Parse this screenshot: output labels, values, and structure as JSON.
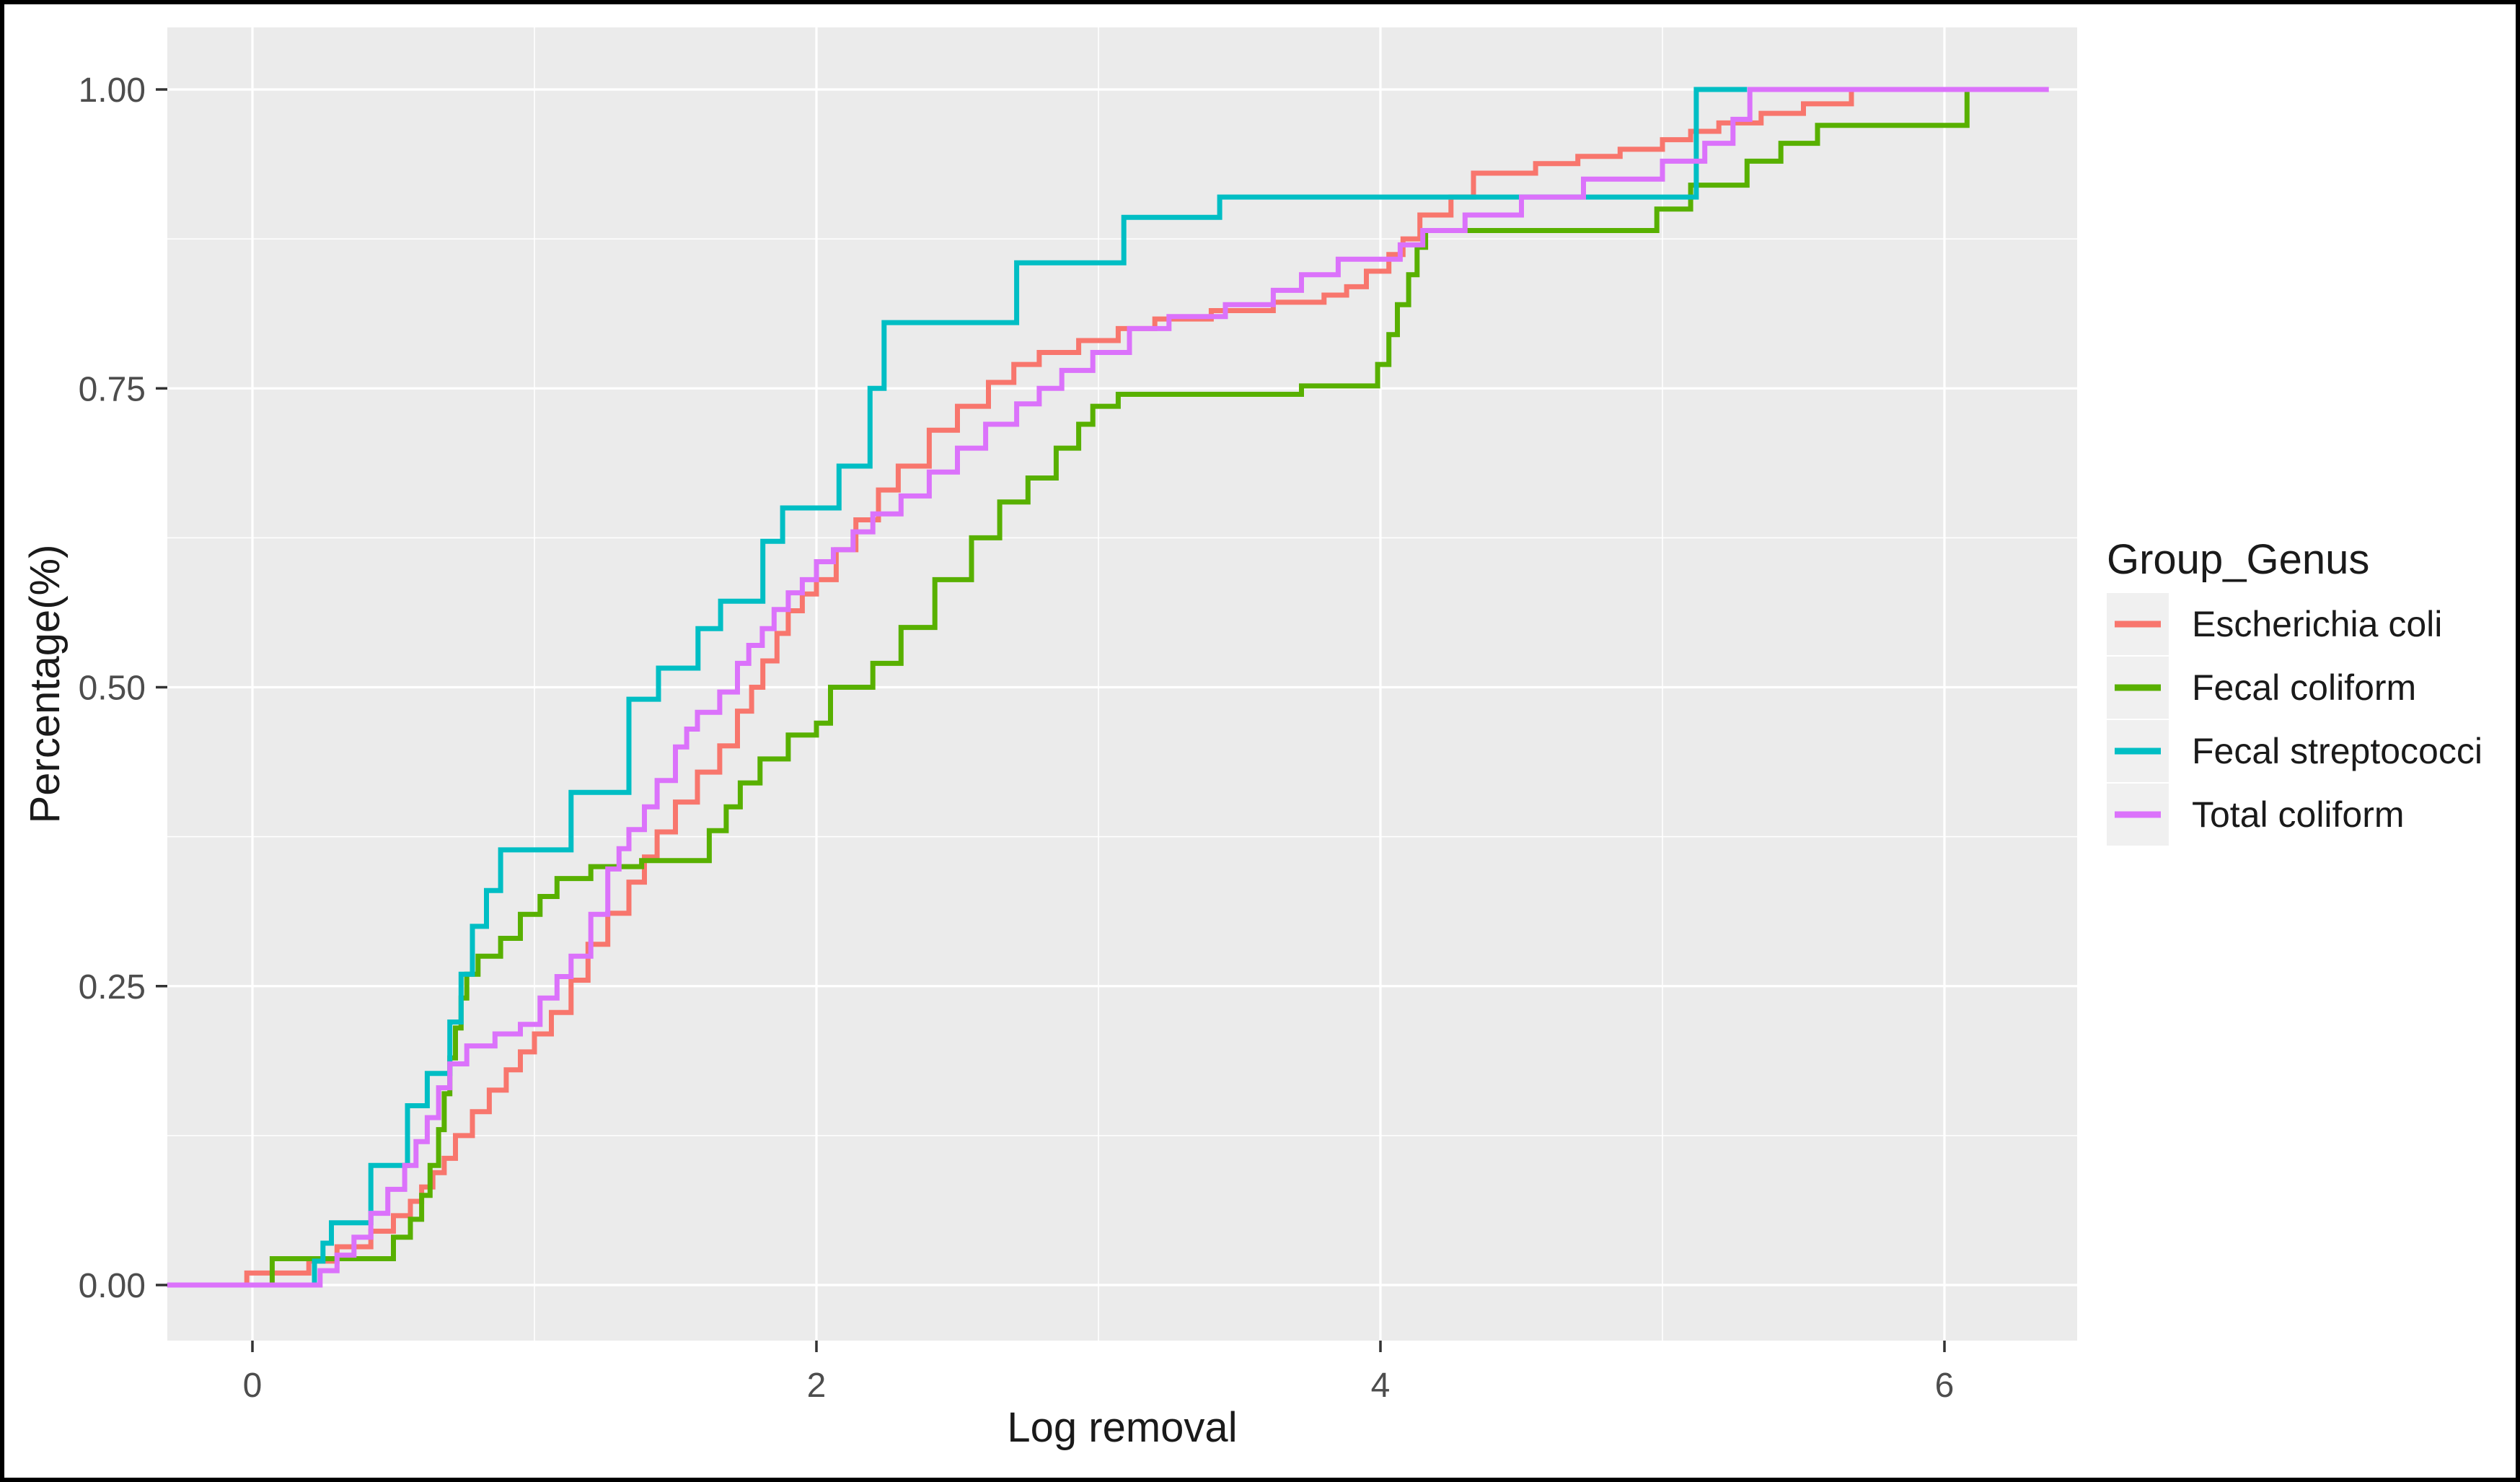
{
  "chart_data": {
    "type": "line",
    "subtype": "step-ecdf",
    "title": "",
    "xlabel": "Log removal",
    "ylabel": "Percentage(%)",
    "legend_title": "Group_Genus",
    "legend_position": "right",
    "grid": "on",
    "panel_bg": "#EBEBEB",
    "grid_major_color": "#FFFFFF",
    "grid_minor_color": "#FFFFFF",
    "legend_key_bg": "#F0F0F0",
    "tick_label_color": "#4D4D4D",
    "axis_title_color": "#1A1A1A",
    "tick_mark_color": "#333333",
    "xlim": [
      -0.302,
      6.47
    ],
    "ylim": [
      -0.046,
      1.052
    ],
    "x_ticks": [
      0,
      2,
      4,
      6
    ],
    "x_tick_labels": [
      "0",
      "2",
      "4",
      "6"
    ],
    "x_minor_ticks": [
      1,
      3,
      5
    ],
    "y_ticks": [
      0,
      0.25,
      0.5,
      0.75,
      1.0
    ],
    "y_tick_labels": [
      "0.00",
      "0.25",
      "0.50",
      "0.75",
      "1.00"
    ],
    "y_minor_ticks": [
      0.125,
      0.375,
      0.625,
      0.875
    ],
    "series": [
      {
        "name": "Escherichia coli",
        "color": "#F8766D",
        "start_x": -0.302,
        "end_x": 5.68,
        "points": [
          [
            -0.02,
            0.01
          ],
          [
            0.2,
            0.02
          ],
          [
            0.3,
            0.032
          ],
          [
            0.42,
            0.045
          ],
          [
            0.5,
            0.058
          ],
          [
            0.56,
            0.07
          ],
          [
            0.6,
            0.082
          ],
          [
            0.64,
            0.094
          ],
          [
            0.68,
            0.106
          ],
          [
            0.72,
            0.125
          ],
          [
            0.78,
            0.145
          ],
          [
            0.84,
            0.163
          ],
          [
            0.9,
            0.18
          ],
          [
            0.95,
            0.195
          ],
          [
            1.0,
            0.21
          ],
          [
            1.06,
            0.228
          ],
          [
            1.13,
            0.255
          ],
          [
            1.19,
            0.285
          ],
          [
            1.26,
            0.311
          ],
          [
            1.335,
            0.337
          ],
          [
            1.39,
            0.358
          ],
          [
            1.435,
            0.379
          ],
          [
            1.5,
            0.404
          ],
          [
            1.578,
            0.429
          ],
          [
            1.657,
            0.451
          ],
          [
            1.72,
            0.48
          ],
          [
            1.77,
            0.5
          ],
          [
            1.81,
            0.522
          ],
          [
            1.86,
            0.545
          ],
          [
            1.9,
            0.564
          ],
          [
            1.95,
            0.578
          ],
          [
            2.0,
            0.59
          ],
          [
            2.07,
            0.615
          ],
          [
            2.14,
            0.64
          ],
          [
            2.22,
            0.665
          ],
          [
            2.29,
            0.685
          ],
          [
            2.4,
            0.715
          ],
          [
            2.5,
            0.735
          ],
          [
            2.61,
            0.755
          ],
          [
            2.7,
            0.77
          ],
          [
            2.79,
            0.78
          ],
          [
            2.93,
            0.79
          ],
          [
            3.07,
            0.8
          ],
          [
            3.2,
            0.808
          ],
          [
            3.4,
            0.815
          ],
          [
            3.62,
            0.822
          ],
          [
            3.8,
            0.828
          ],
          [
            3.88,
            0.835
          ],
          [
            3.95,
            0.848
          ],
          [
            4.03,
            0.862
          ],
          [
            4.08,
            0.875
          ],
          [
            4.14,
            0.895
          ],
          [
            4.25,
            0.91
          ],
          [
            4.33,
            0.93
          ],
          [
            4.55,
            0.938
          ],
          [
            4.7,
            0.944
          ],
          [
            4.85,
            0.95
          ],
          [
            5.0,
            0.958
          ],
          [
            5.1,
            0.965
          ],
          [
            5.2,
            0.972
          ],
          [
            5.35,
            0.98
          ],
          [
            5.5,
            0.988
          ],
          [
            5.67,
            1.0
          ]
        ]
      },
      {
        "name": "Fecal coliform",
        "color": "#58B000",
        "start_x": -0.302,
        "end_x": 6.1,
        "points": [
          [
            0.07,
            0.022
          ],
          [
            0.5,
            0.04
          ],
          [
            0.56,
            0.055
          ],
          [
            0.6,
            0.075
          ],
          [
            0.63,
            0.1
          ],
          [
            0.66,
            0.13
          ],
          [
            0.68,
            0.16
          ],
          [
            0.7,
            0.19
          ],
          [
            0.72,
            0.215
          ],
          [
            0.74,
            0.24
          ],
          [
            0.76,
            0.26
          ],
          [
            0.8,
            0.275
          ],
          [
            0.88,
            0.29
          ],
          [
            0.95,
            0.31
          ],
          [
            1.02,
            0.325
          ],
          [
            1.08,
            0.34
          ],
          [
            1.2,
            0.35
          ],
          [
            1.38,
            0.355
          ],
          [
            1.62,
            0.38
          ],
          [
            1.68,
            0.4
          ],
          [
            1.73,
            0.42
          ],
          [
            1.8,
            0.44
          ],
          [
            1.9,
            0.46
          ],
          [
            2.0,
            0.47
          ],
          [
            2.05,
            0.5
          ],
          [
            2.2,
            0.52
          ],
          [
            2.3,
            0.55
          ],
          [
            2.42,
            0.59
          ],
          [
            2.55,
            0.625
          ],
          [
            2.65,
            0.655
          ],
          [
            2.75,
            0.675
          ],
          [
            2.85,
            0.7
          ],
          [
            2.93,
            0.72
          ],
          [
            2.98,
            0.735
          ],
          [
            3.07,
            0.745
          ],
          [
            3.72,
            0.752
          ],
          [
            3.99,
            0.77
          ],
          [
            4.03,
            0.795
          ],
          [
            4.06,
            0.82
          ],
          [
            4.1,
            0.845
          ],
          [
            4.13,
            0.868
          ],
          [
            4.16,
            0.882
          ],
          [
            4.98,
            0.9
          ],
          [
            5.1,
            0.92
          ],
          [
            5.3,
            0.94
          ],
          [
            5.42,
            0.955
          ],
          [
            5.55,
            0.97
          ],
          [
            6.08,
            1.0
          ]
        ]
      },
      {
        "name": "Fecal streptococci",
        "color": "#00BEC4",
        "start_x": -0.302,
        "end_x": 5.3,
        "points": [
          [
            0.22,
            0.02
          ],
          [
            0.25,
            0.035
          ],
          [
            0.28,
            0.052
          ],
          [
            0.42,
            0.1
          ],
          [
            0.55,
            0.15
          ],
          [
            0.62,
            0.177
          ],
          [
            0.7,
            0.22
          ],
          [
            0.74,
            0.26
          ],
          [
            0.78,
            0.3
          ],
          [
            0.83,
            0.33
          ],
          [
            0.88,
            0.364
          ],
          [
            1.13,
            0.412
          ],
          [
            1.335,
            0.49
          ],
          [
            1.44,
            0.516
          ],
          [
            1.58,
            0.549
          ],
          [
            1.66,
            0.572
          ],
          [
            1.81,
            0.622
          ],
          [
            1.88,
            0.65
          ],
          [
            2.08,
            0.685
          ],
          [
            2.19,
            0.75
          ],
          [
            2.24,
            0.805
          ],
          [
            2.71,
            0.855
          ],
          [
            3.09,
            0.893
          ],
          [
            3.43,
            0.91
          ],
          [
            5.12,
            1.0
          ]
        ]
      },
      {
        "name": "Total coliform",
        "color": "#DB72FB",
        "start_x": -0.302,
        "end_x": 6.37,
        "points": [
          [
            0.24,
            0.012
          ],
          [
            0.3,
            0.025
          ],
          [
            0.36,
            0.04
          ],
          [
            0.42,
            0.06
          ],
          [
            0.48,
            0.08
          ],
          [
            0.54,
            0.1
          ],
          [
            0.58,
            0.12
          ],
          [
            0.62,
            0.14
          ],
          [
            0.66,
            0.165
          ],
          [
            0.7,
            0.185
          ],
          [
            0.76,
            0.2
          ],
          [
            0.86,
            0.21
          ],
          [
            0.95,
            0.218
          ],
          [
            1.02,
            0.24
          ],
          [
            1.08,
            0.258
          ],
          [
            1.13,
            0.275
          ],
          [
            1.2,
            0.31
          ],
          [
            1.26,
            0.348
          ],
          [
            1.3,
            0.365
          ],
          [
            1.335,
            0.381
          ],
          [
            1.39,
            0.4
          ],
          [
            1.435,
            0.422
          ],
          [
            1.5,
            0.45
          ],
          [
            1.54,
            0.465
          ],
          [
            1.578,
            0.479
          ],
          [
            1.657,
            0.496
          ],
          [
            1.72,
            0.52
          ],
          [
            1.76,
            0.535
          ],
          [
            1.808,
            0.549
          ],
          [
            1.85,
            0.565
          ],
          [
            1.9,
            0.579
          ],
          [
            1.95,
            0.59
          ],
          [
            2.0,
            0.605
          ],
          [
            2.06,
            0.615
          ],
          [
            2.13,
            0.63
          ],
          [
            2.2,
            0.645
          ],
          [
            2.3,
            0.66
          ],
          [
            2.4,
            0.68
          ],
          [
            2.5,
            0.7
          ],
          [
            2.6,
            0.72
          ],
          [
            2.71,
            0.737
          ],
          [
            2.79,
            0.75
          ],
          [
            2.87,
            0.765
          ],
          [
            2.98,
            0.78
          ],
          [
            3.11,
            0.8
          ],
          [
            3.25,
            0.81
          ],
          [
            3.45,
            0.82
          ],
          [
            3.62,
            0.832
          ],
          [
            3.72,
            0.845
          ],
          [
            3.85,
            0.858
          ],
          [
            4.07,
            0.87
          ],
          [
            4.15,
            0.882
          ],
          [
            4.3,
            0.895
          ],
          [
            4.5,
            0.91
          ],
          [
            4.72,
            0.925
          ],
          [
            5.0,
            0.94
          ],
          [
            5.15,
            0.955
          ],
          [
            5.25,
            0.975
          ],
          [
            5.31,
            1.0
          ]
        ]
      }
    ]
  }
}
